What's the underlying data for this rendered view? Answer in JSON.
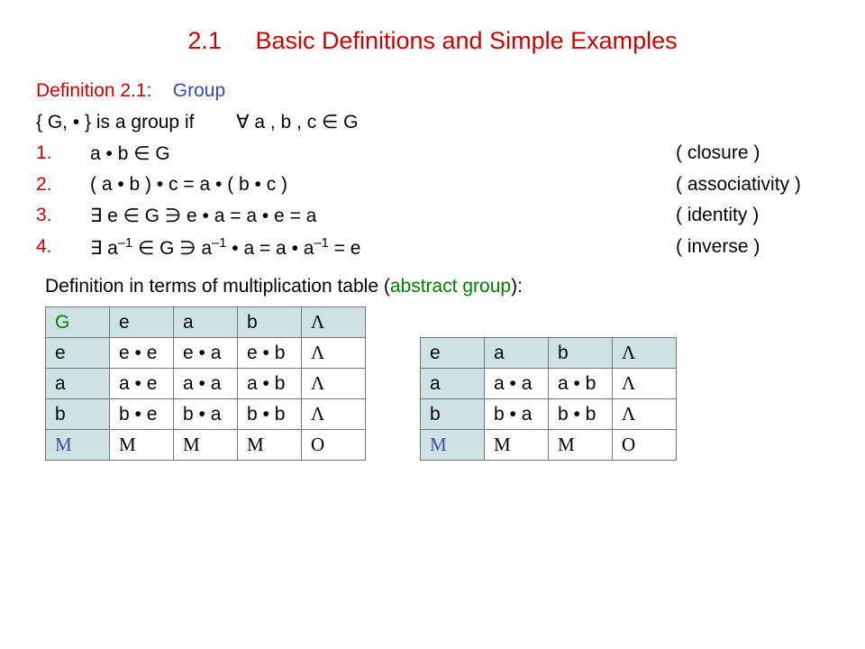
{
  "colors": {
    "red": "#cc0000",
    "blue": "#3b4aa8",
    "green": "#008000",
    "black": "#000000",
    "header_bg": "#cde3e3"
  },
  "title": {
    "section": "2.1",
    "text": "Basic Definitions and Simple Examples"
  },
  "definition": {
    "label": "Definition 2.1:",
    "name": "Group"
  },
  "groupCond": {
    "pre": "{ G, • }   is a group if",
    "quant": "∀  a , b , c  ∈  G"
  },
  "axioms": [
    {
      "num": "1.",
      "body_html": "a • b ∈ G",
      "name": "( closure )"
    },
    {
      "num": "2.",
      "body_html": "( a • b ) • c = a • ( b • c )",
      "name": "( associativity )"
    },
    {
      "num": "3.",
      "body_html": "∃  e  ∈  G   ∋    e • a = a • e = a",
      "name": "( identity )"
    },
    {
      "num": "4.",
      "body_html": "∃  a<sup>–1</sup> ∈  G   ∋     a<sup>–1</sup> • a = a • a<sup>–1</sup> = e",
      "name": "( inverse )"
    }
  ],
  "midline": {
    "pre": "Definition in terms of multiplication table (",
    "green": "abstract group",
    "post": "):"
  },
  "table1": {
    "rows": [
      [
        {
          "t": "G",
          "c": "green",
          "h": 1
        },
        {
          "t": "e",
          "h": 1
        },
        {
          "t": "a",
          "h": 1
        },
        {
          "t": "b",
          "h": 1
        },
        {
          "t": "Λ",
          "h": 1,
          "f": "serif"
        }
      ],
      [
        {
          "t": "e",
          "h": 1
        },
        {
          "t": "e • e"
        },
        {
          "t": "e • a"
        },
        {
          "t": "e • b"
        },
        {
          "t": "Λ",
          "f": "serif"
        }
      ],
      [
        {
          "t": "a",
          "h": 1
        },
        {
          "t": "a • e"
        },
        {
          "t": "a • a"
        },
        {
          "t": "a • b"
        },
        {
          "t": "Λ",
          "f": "serif"
        }
      ],
      [
        {
          "t": "b",
          "h": 1
        },
        {
          "t": "b • e"
        },
        {
          "t": "b • a"
        },
        {
          "t": "b • b"
        },
        {
          "t": "Λ",
          "f": "serif"
        }
      ],
      [
        {
          "t": "M",
          "h": 1,
          "c": "blue",
          "f": "serif"
        },
        {
          "t": "M",
          "f": "serif"
        },
        {
          "t": "M",
          "f": "serif"
        },
        {
          "t": "M",
          "f": "serif"
        },
        {
          "t": "O",
          "f": "serif"
        }
      ]
    ]
  },
  "table2": {
    "rows": [
      [
        {
          "t": "e",
          "h": 1
        },
        {
          "t": "a",
          "h": 1
        },
        {
          "t": "b",
          "h": 1
        },
        {
          "t": "Λ",
          "h": 1,
          "f": "serif"
        }
      ],
      [
        {
          "t": "a",
          "h": 1
        },
        {
          "t": "a • a"
        },
        {
          "t": "a • b"
        },
        {
          "t": "Λ",
          "f": "serif"
        }
      ],
      [
        {
          "t": "b",
          "h": 1
        },
        {
          "t": "b • a"
        },
        {
          "t": "b • b"
        },
        {
          "t": "Λ",
          "f": "serif"
        }
      ],
      [
        {
          "t": "M",
          "h": 1,
          "c": "blue",
          "f": "serif"
        },
        {
          "t": "M",
          "f": "serif"
        },
        {
          "t": "M",
          "f": "serif"
        },
        {
          "t": "O",
          "f": "serif"
        }
      ]
    ]
  }
}
